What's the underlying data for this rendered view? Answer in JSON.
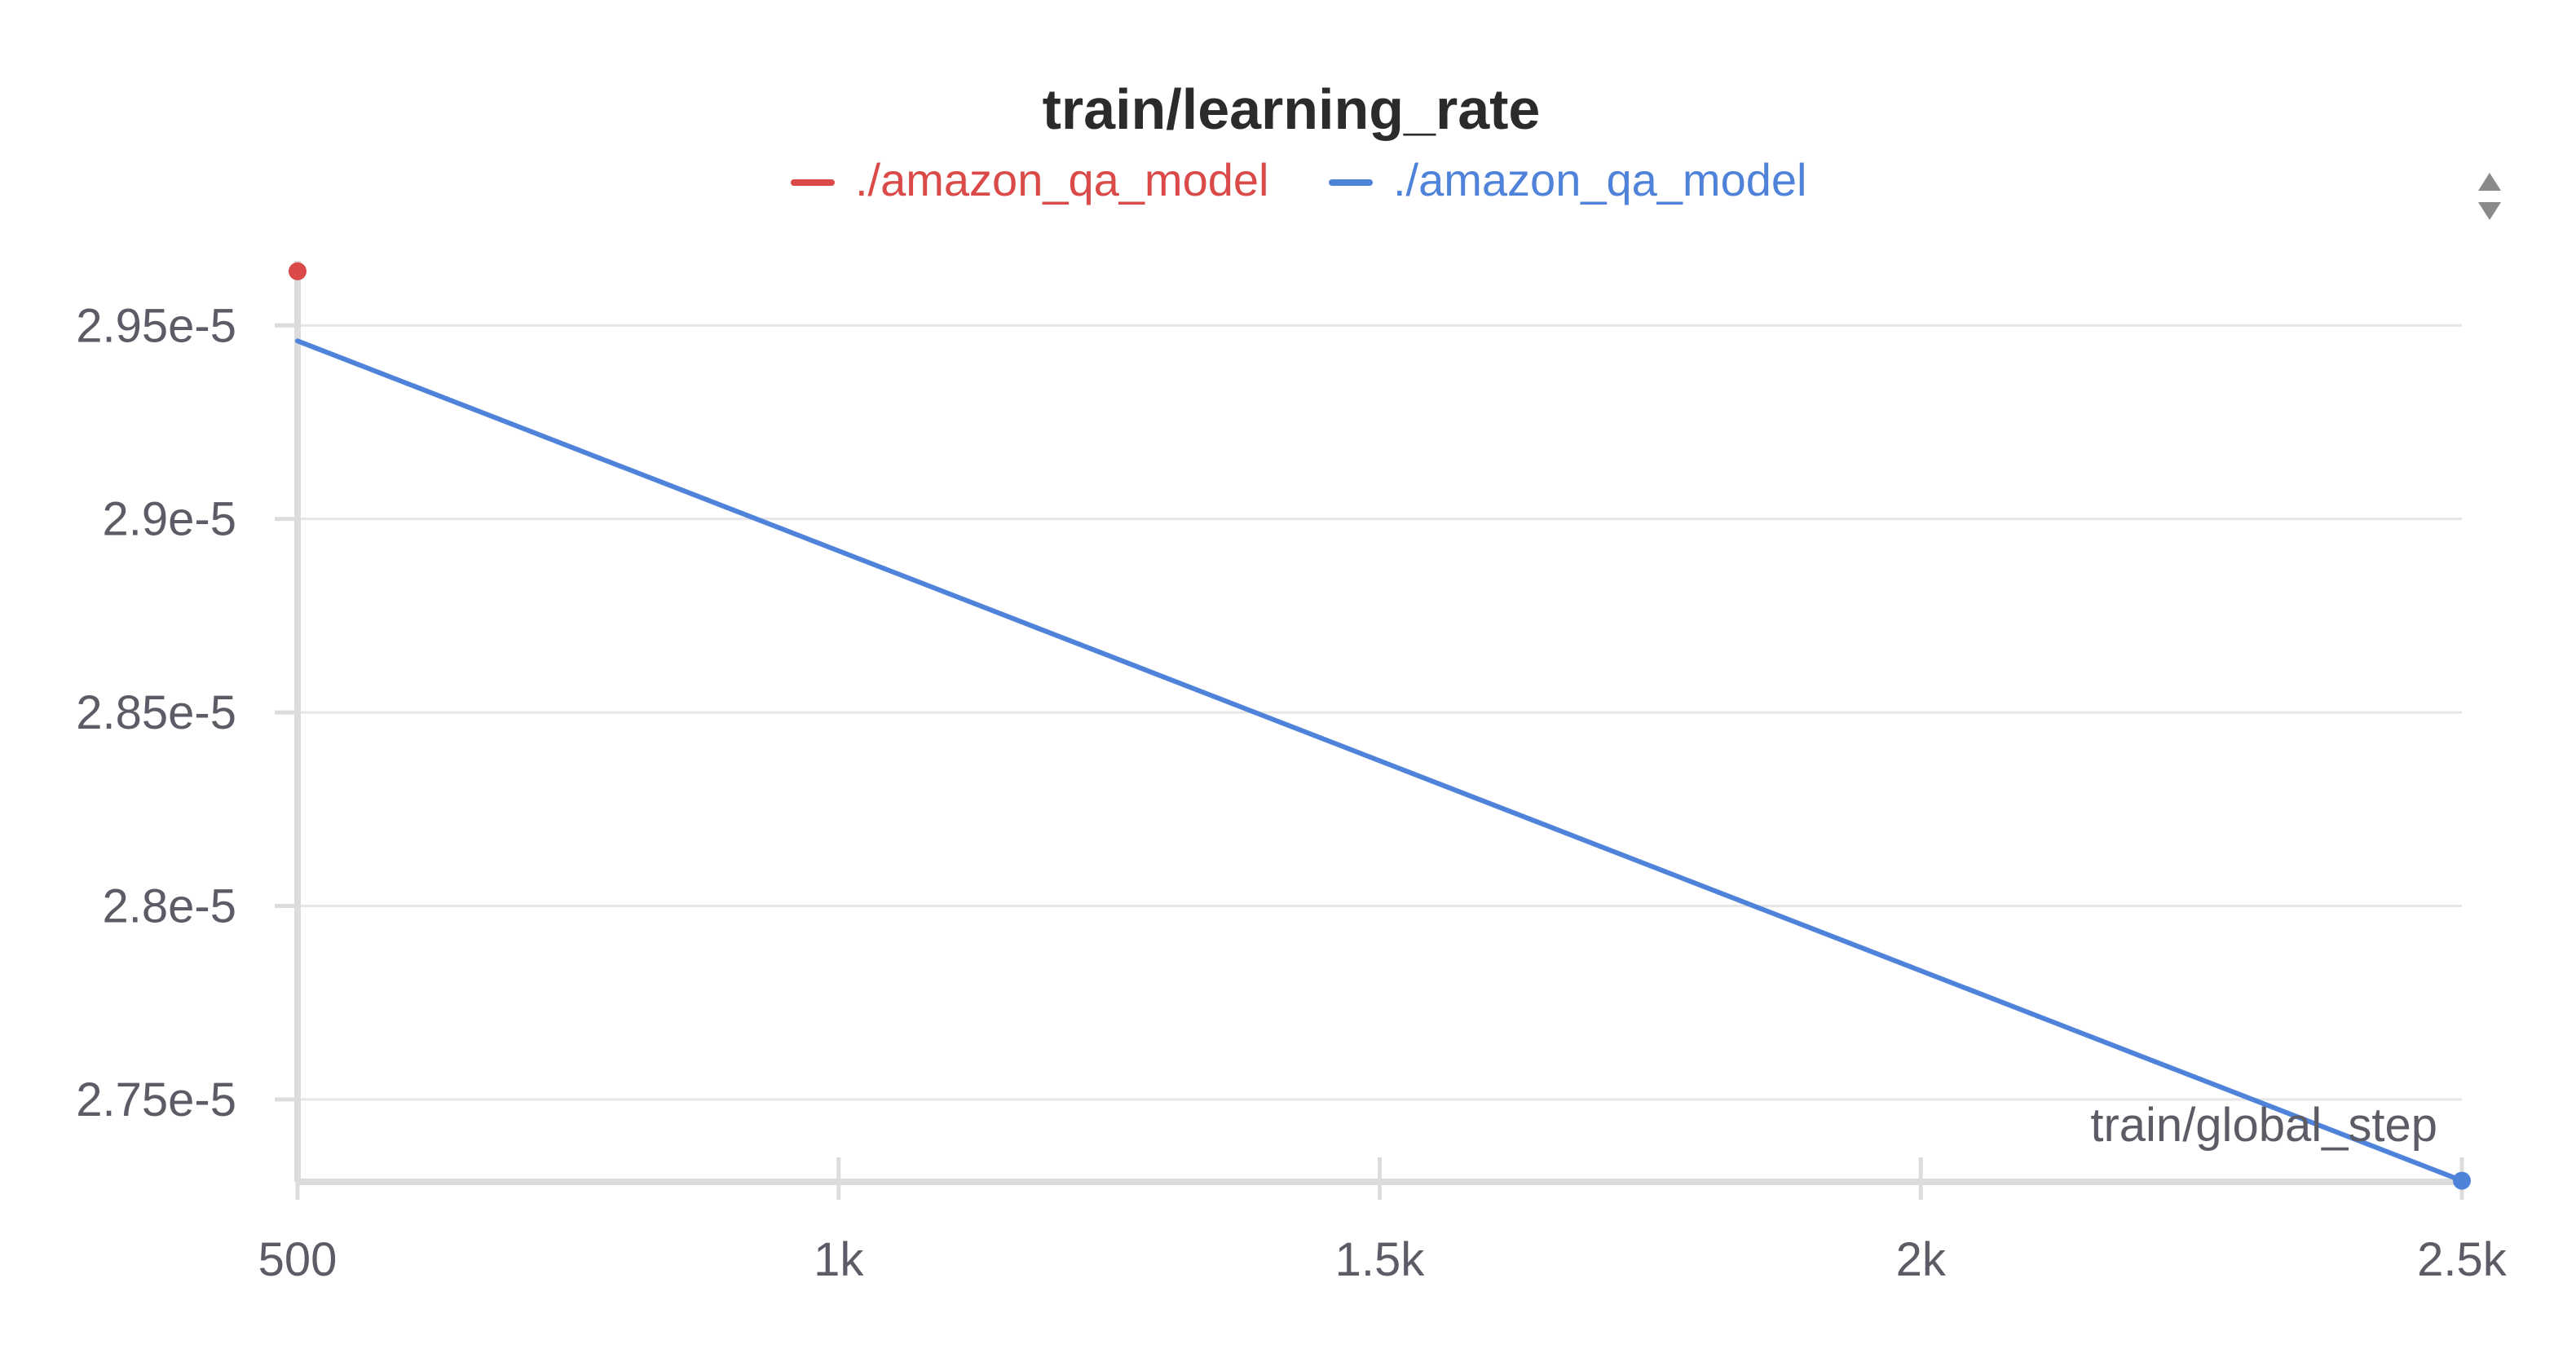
{
  "chart_data": {
    "type": "line",
    "title": "train/learning_rate",
    "xlabel": "train/global_step",
    "ylabel": "",
    "xlim": [
      500,
      2500
    ],
    "ylim": [
      2.7287e-05,
      2.9667e-05
    ],
    "x_ticks": [
      {
        "value": 500,
        "label": "500"
      },
      {
        "value": 1000,
        "label": "1k"
      },
      {
        "value": 1500,
        "label": "1.5k"
      },
      {
        "value": 2000,
        "label": "2k"
      },
      {
        "value": 2500,
        "label": "2.5k"
      }
    ],
    "y_ticks": [
      {
        "value": 2.75e-05,
        "label": "2.75e-5"
      },
      {
        "value": 2.8e-05,
        "label": "2.8e-5"
      },
      {
        "value": 2.85e-05,
        "label": "2.85e-5"
      },
      {
        "value": 2.9e-05,
        "label": "2.9e-5"
      },
      {
        "value": 2.95e-05,
        "label": "2.95e-5"
      }
    ],
    "grid": true,
    "legend_position": "top-center",
    "series": [
      {
        "name": "./amazon_qa_model",
        "color": "#d94a48",
        "points": [
          {
            "x": 500,
            "y": 2.964e-05
          }
        ]
      },
      {
        "name": "./amazon_qa_model",
        "color": "#4f82d9",
        "points": [
          {
            "x": 500,
            "y": 2.946e-05
          },
          {
            "x": 2500,
            "y": 2.729e-05
          }
        ]
      }
    ]
  },
  "controls": {
    "legend_scroll_icon": "up-down-arrows-icon"
  }
}
